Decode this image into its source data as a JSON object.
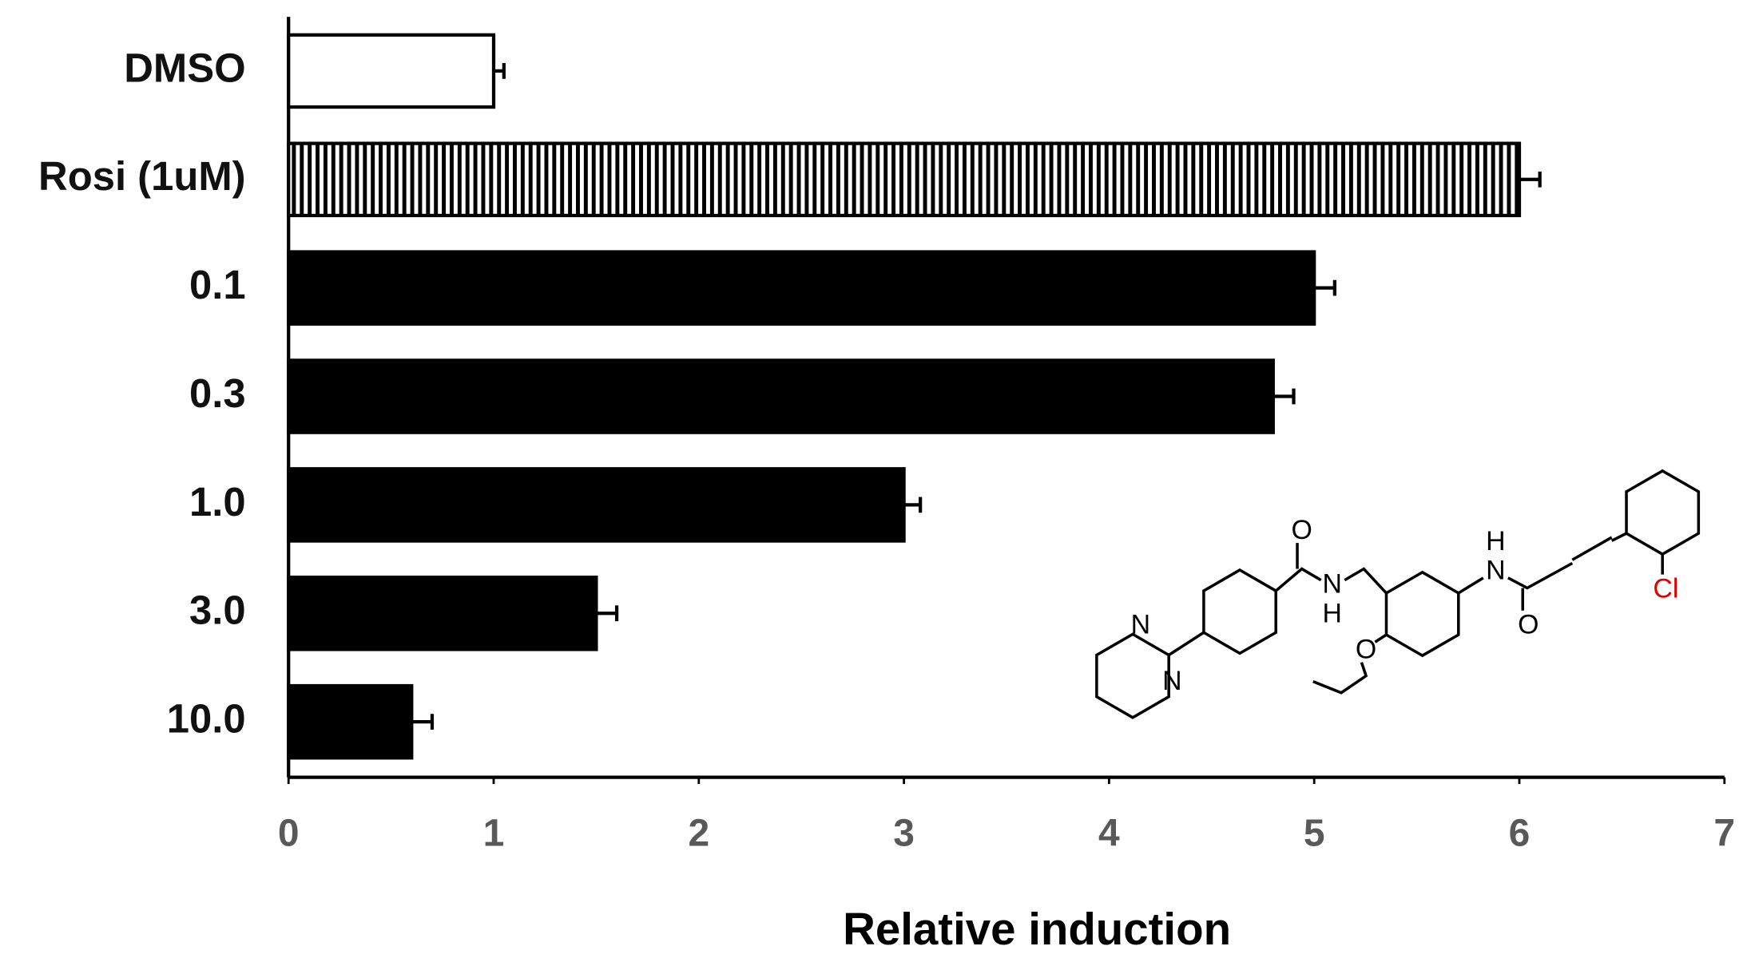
{
  "chart_data": {
    "type": "hbar",
    "categories": [
      "DMSO",
      "Rosi (1uM)",
      "0.1",
      "0.3",
      "1.0",
      "3.0",
      "10.0"
    ],
    "values": [
      1.0,
      6.0,
      5.0,
      4.8,
      3.0,
      1.5,
      0.6
    ],
    "errors": [
      0.05,
      0.1,
      0.1,
      0.1,
      0.08,
      0.1,
      0.1
    ],
    "patterns": [
      "none",
      "vertical-stripes",
      "solid",
      "solid",
      "solid",
      "solid",
      "solid"
    ],
    "color": "#000000",
    "xlim": [
      0,
      7
    ],
    "xticks": [
      0,
      1,
      2,
      3,
      4,
      5,
      6,
      7
    ],
    "x_label": "Relative induction"
  },
  "structure": {
    "atoms": [
      "N",
      "N",
      "O",
      "N",
      "H",
      "O",
      "H",
      "N",
      "O",
      "Cl"
    ]
  }
}
